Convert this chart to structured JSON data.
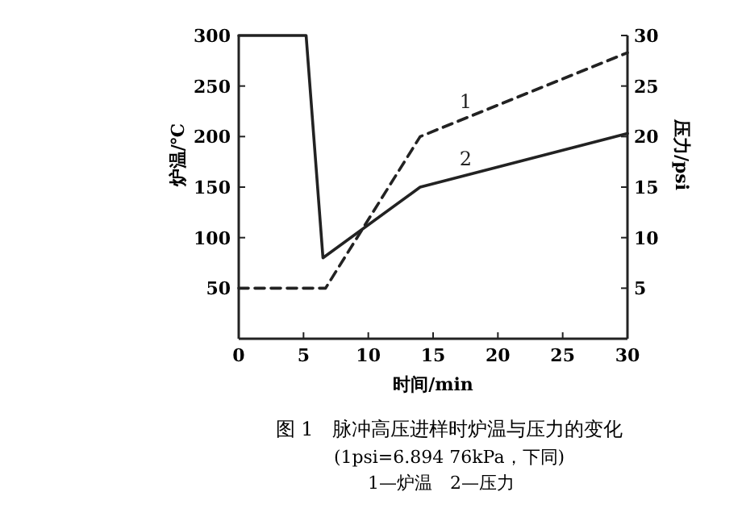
{
  "chart_data": {
    "type": "line",
    "title": "图 1　脉冲高压进样时炉温与压力的变化",
    "subtitle": "(1psi=6.894 76kPa，下同)",
    "annotations": [
      "1—炉温　2—压力"
    ],
    "xlabel": "时间/min",
    "ylabel": "炉温/℃",
    "y2label": "压力/psi",
    "xlim": [
      0,
      30
    ],
    "xticks": [
      0,
      5,
      10,
      15,
      20,
      25,
      30
    ],
    "ylim": [
      0,
      300
    ],
    "yticks": [
      50,
      100,
      150,
      200,
      250,
      300
    ],
    "y2lim": [
      0,
      30
    ],
    "y2ticks": [
      5,
      10,
      15,
      20,
      25,
      30
    ],
    "grid": false,
    "marker": "none",
    "series": [
      {
        "name": "1",
        "color": "#222222",
        "line_style": "dashed",
        "x": [
          0,
          6.7,
          14,
          30
        ],
        "values": [
          50,
          50,
          200,
          283
        ]
      },
      {
        "name": "2",
        "color": "#222222",
        "line_style": "solid",
        "axis": "y2",
        "x": [
          0,
          5.2,
          6.5,
          14,
          30
        ],
        "values": [
          30,
          30,
          8,
          15,
          20.3
        ]
      }
    ]
  }
}
